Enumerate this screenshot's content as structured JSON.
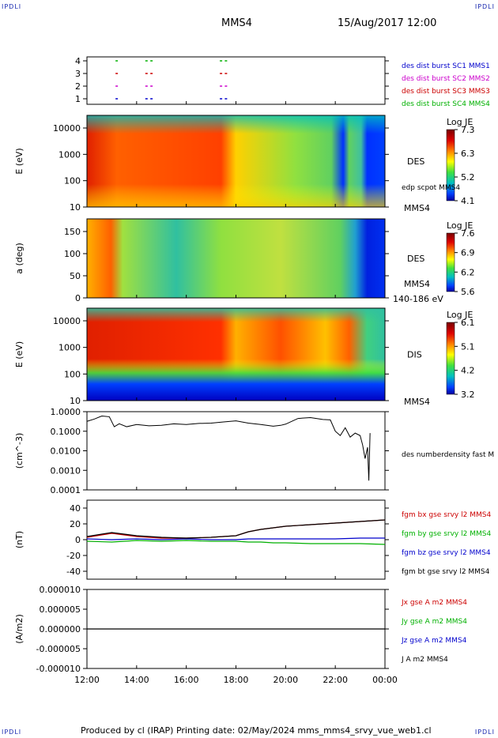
{
  "corners": {
    "tl": "IPDLI",
    "tr": "IPDLI",
    "bl": "IPDLI",
    "br": "IPDLI"
  },
  "header": {
    "spacecraft": "MMS4",
    "datetime": "15/Aug/2017 12:00"
  },
  "footer": "Produced by cl (IRAP)   Printing date: 02/May/2024   mms_mms4_srvy_vue_web1.cl",
  "colors": {
    "blue": "#0000cc",
    "magenta": "#cc00cc",
    "red": "#cc0000",
    "green": "#00b000",
    "black": "#000000"
  },
  "chart_data": [
    {
      "type": "scatter",
      "id": "burst",
      "y_ticks": [
        "4",
        "3",
        "2",
        "1"
      ],
      "legend": [
        {
          "text": "des dist burst SC1 MMS1",
          "color": "#0000cc"
        },
        {
          "text": "des dist burst SC2 MMS2",
          "color": "#cc00cc"
        },
        {
          "text": "des dist burst SC3 MMS3",
          "color": "#cc0000"
        },
        {
          "text": "des dist burst SC4 MMS4",
          "color": "#00b000"
        }
      ],
      "series": [
        {
          "sc": 4,
          "x": [
            13.15,
            14.35,
            14.55,
            17.35,
            17.55
          ]
        },
        {
          "sc": 3,
          "x": [
            13.15,
            14.35,
            14.55,
            17.35,
            17.55
          ]
        },
        {
          "sc": 2,
          "x": [
            13.15,
            14.35,
            14.55,
            17.35,
            17.55
          ]
        },
        {
          "sc": 1,
          "x": [
            13.15,
            14.35,
            14.55,
            17.35,
            17.55
          ]
        }
      ]
    },
    {
      "type": "heatmap",
      "id": "des-energy",
      "ylabel": "E (eV)",
      "y_ticks": [
        "10000",
        "1000",
        "100",
        "10"
      ],
      "instrument": "DES",
      "overlay": "edp scpot MMS4",
      "bottom_label": "MMS4",
      "colorbar": {
        "title": "Log JE",
        "ticks": [
          "7.3",
          "6.3",
          "5.2",
          "4.1"
        ]
      }
    },
    {
      "type": "heatmap",
      "id": "des-pitch",
      "ylabel": "a (deg)",
      "y_ticks": [
        "150",
        "100",
        "50",
        "0"
      ],
      "instrument": "DES",
      "mid_label": "MMS4",
      "bottom_label": "140-186 eV",
      "colorbar": {
        "title": "Log JE",
        "ticks": [
          "7.6",
          "6.9",
          "6.2",
          "5.6"
        ]
      }
    },
    {
      "type": "heatmap",
      "id": "dis-energy",
      "ylabel": "E (eV)",
      "y_ticks": [
        "10000",
        "1000",
        "100",
        "10"
      ],
      "instrument": "DIS",
      "bottom_label": "MMS4",
      "colorbar": {
        "title": "Log JE",
        "ticks": [
          "6.1",
          "5.1",
          "4.2",
          "3.2"
        ]
      }
    },
    {
      "type": "line",
      "id": "density",
      "log_y": true,
      "ylabel": "(cm^-3)",
      "y_ticks": [
        "1.0000",
        "0.1000",
        "0.0100",
        "0.0010",
        "0.0001"
      ],
      "legend": [
        {
          "text": "des numberdensity fast M",
          "color": "#000000"
        }
      ],
      "x": [
        12.0,
        12.3,
        12.6,
        12.9,
        13.1,
        13.3,
        13.6,
        14.0,
        14.5,
        15.0,
        15.5,
        16.0,
        16.5,
        17.0,
        17.5,
        18.0,
        18.5,
        19.0,
        19.5,
        19.8,
        20.0,
        20.5,
        21.0,
        21.5,
        21.8,
        22.0,
        22.2,
        22.4,
        22.6,
        22.8,
        23.0,
        23.1,
        23.2,
        23.3,
        23.35,
        23.4
      ],
      "y": [
        0.32,
        0.42,
        0.6,
        0.55,
        0.17,
        0.24,
        0.17,
        0.22,
        0.19,
        0.2,
        0.24,
        0.22,
        0.25,
        0.26,
        0.3,
        0.34,
        0.26,
        0.22,
        0.18,
        0.2,
        0.23,
        0.45,
        0.5,
        0.4,
        0.38,
        0.1,
        0.06,
        0.15,
        0.05,
        0.08,
        0.06,
        0.02,
        0.004,
        0.015,
        0.0003,
        0.08
      ]
    },
    {
      "type": "line",
      "id": "bfield",
      "ylabel": "(nT)",
      "y_ticks": [
        "40",
        "20",
        "0",
        "-20",
        "-40"
      ],
      "ylim": [
        -50,
        50
      ],
      "legend": [
        {
          "text": "fgm bx gse srvy l2 MMS4",
          "color": "#cc0000"
        },
        {
          "text": "fgm by gse srvy l2 MMS4",
          "color": "#00b000"
        },
        {
          "text": "fgm bz gse srvy l2 MMS4",
          "color": "#0000cc"
        },
        {
          "text": "fgm bt gse srvy l2 MMS4",
          "color": "#000000"
        }
      ],
      "x": [
        12,
        13,
        14,
        15,
        16,
        17,
        18,
        18.5,
        19,
        19.5,
        20,
        21,
        22,
        23,
        24
      ],
      "series": [
        {
          "name": "bx",
          "y": [
            3,
            8,
            4,
            2,
            2,
            3,
            5,
            10,
            13,
            15,
            17,
            19,
            21,
            23,
            25
          ]
        },
        {
          "name": "by",
          "y": [
            -2,
            -3,
            -1,
            -2,
            -1,
            -2,
            -2,
            -3,
            -3,
            -4,
            -4,
            -5,
            -5,
            -5,
            -6
          ]
        },
        {
          "name": "bz",
          "y": [
            1,
            0,
            1,
            0,
            1,
            0,
            0,
            1,
            1,
            1,
            1,
            1,
            1,
            2,
            2
          ]
        },
        {
          "name": "bt",
          "y": [
            4,
            9,
            5,
            3,
            2,
            3,
            5,
            10,
            13,
            15,
            17,
            19,
            21,
            23,
            25
          ]
        }
      ]
    },
    {
      "type": "line",
      "id": "current",
      "ylabel": "(A/m2)",
      "y_ticks": [
        "0.000010",
        "0.000005",
        "0.000000",
        "-0.000005",
        "-0.000010"
      ],
      "ylim": [
        -1e-05,
        1e-05
      ],
      "legend": [
        {
          "text": "Jx gse A m2 MMS4",
          "color": "#cc0000"
        },
        {
          "text": "Jy gse A m2 MMS4",
          "color": "#00b000"
        },
        {
          "text": "Jz gse A m2 MMS4",
          "color": "#0000cc"
        },
        {
          "text": "J A m2 MMS4",
          "color": "#000000"
        }
      ],
      "x": [
        12,
        24
      ],
      "y": [
        0,
        0
      ]
    }
  ],
  "x_axis": {
    "ticks": [
      "12:00",
      "14:00",
      "16:00",
      "18:00",
      "20:00",
      "22:00",
      "00:00"
    ],
    "range": [
      12,
      24
    ]
  }
}
